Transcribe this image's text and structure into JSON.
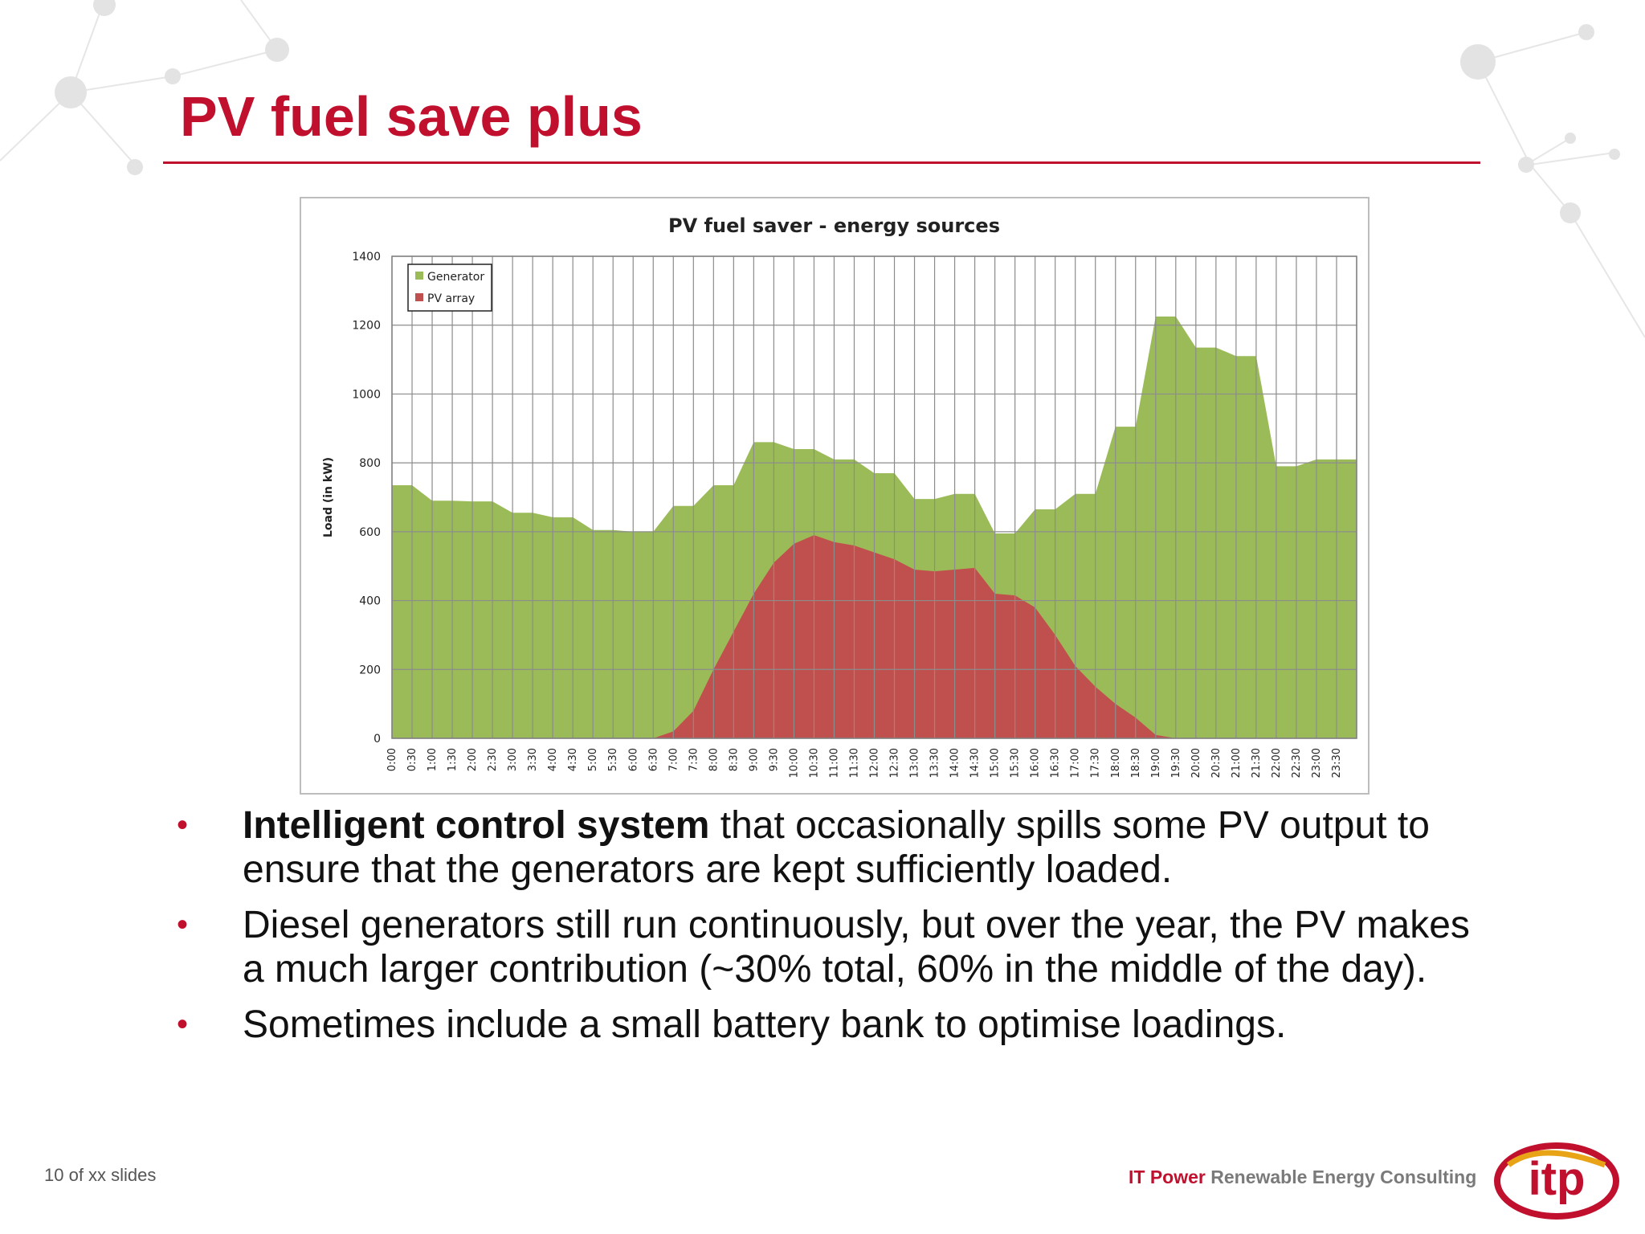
{
  "slide": {
    "title": "PV fuel save plus",
    "footer_left": "10 of xx slides",
    "brand_name": "IT Power",
    "brand_tagline": "Renewable Energy Consulting",
    "logo_text": "itp",
    "accent_color": "#c0102e"
  },
  "bullets": [
    {
      "bold": "Intelligent control system",
      "text": " that occasionally spills some PV output to ensure that the generators are kept sufficiently loaded."
    },
    {
      "bold": "",
      "text": "Diesel generators still run continuously, but over the year, the PV makes a much larger contribution (~30% total, 60% in the middle of the day)."
    },
    {
      "bold": "",
      "text": "Sometimes include a small battery bank to optimise loadings."
    }
  ],
  "bullet_symbol": "•",
  "chart_data": {
    "type": "area",
    "stacked": false,
    "title": "PV fuel saver - energy sources",
    "xlabel": "",
    "ylabel": "Load (in kW)",
    "ylim": [
      0,
      1400
    ],
    "yticks": [
      0,
      200,
      400,
      600,
      800,
      1000,
      1200,
      1400
    ],
    "grid": true,
    "legend_position": "top-left",
    "x": [
      "0:00",
      "0:30",
      "1:00",
      "1:30",
      "2:00",
      "2:30",
      "3:00",
      "3:30",
      "4:00",
      "4:30",
      "5:00",
      "5:30",
      "6:00",
      "6:30",
      "7:00",
      "7:30",
      "8:00",
      "8:30",
      "9:00",
      "9:30",
      "10:00",
      "10:30",
      "11:00",
      "11:30",
      "12:00",
      "12:30",
      "13:00",
      "13:30",
      "14:00",
      "14:30",
      "15:00",
      "15:30",
      "16:00",
      "16:30",
      "17:00",
      "17:30",
      "18:00",
      "18:30",
      "19:00",
      "19:30",
      "20:00",
      "20:30",
      "21:00",
      "21:30",
      "22:00",
      "22:30",
      "23:00",
      "23:30"
    ],
    "series": [
      {
        "name": "Generator",
        "color": "#9bbb59",
        "values": [
          735,
          735,
          690,
          690,
          688,
          688,
          655,
          655,
          642,
          642,
          605,
          605,
          600,
          600,
          675,
          675,
          735,
          735,
          860,
          860,
          840,
          840,
          810,
          810,
          770,
          770,
          695,
          695,
          710,
          710,
          595,
          595,
          665,
          665,
          710,
          710,
          905,
          905,
          1225,
          1225,
          1135,
          1135,
          1110,
          1110,
          790,
          790,
          810,
          810
        ]
      },
      {
        "name": "PV array",
        "color": "#c0504d",
        "values": [
          0,
          0,
          0,
          0,
          0,
          0,
          0,
          0,
          0,
          0,
          0,
          0,
          0,
          0,
          20,
          80,
          200,
          310,
          420,
          510,
          565,
          590,
          570,
          560,
          540,
          520,
          490,
          485,
          490,
          495,
          420,
          415,
          380,
          300,
          210,
          150,
          100,
          60,
          10,
          0,
          0,
          0,
          0,
          0,
          0,
          0,
          0,
          0
        ]
      }
    ]
  }
}
